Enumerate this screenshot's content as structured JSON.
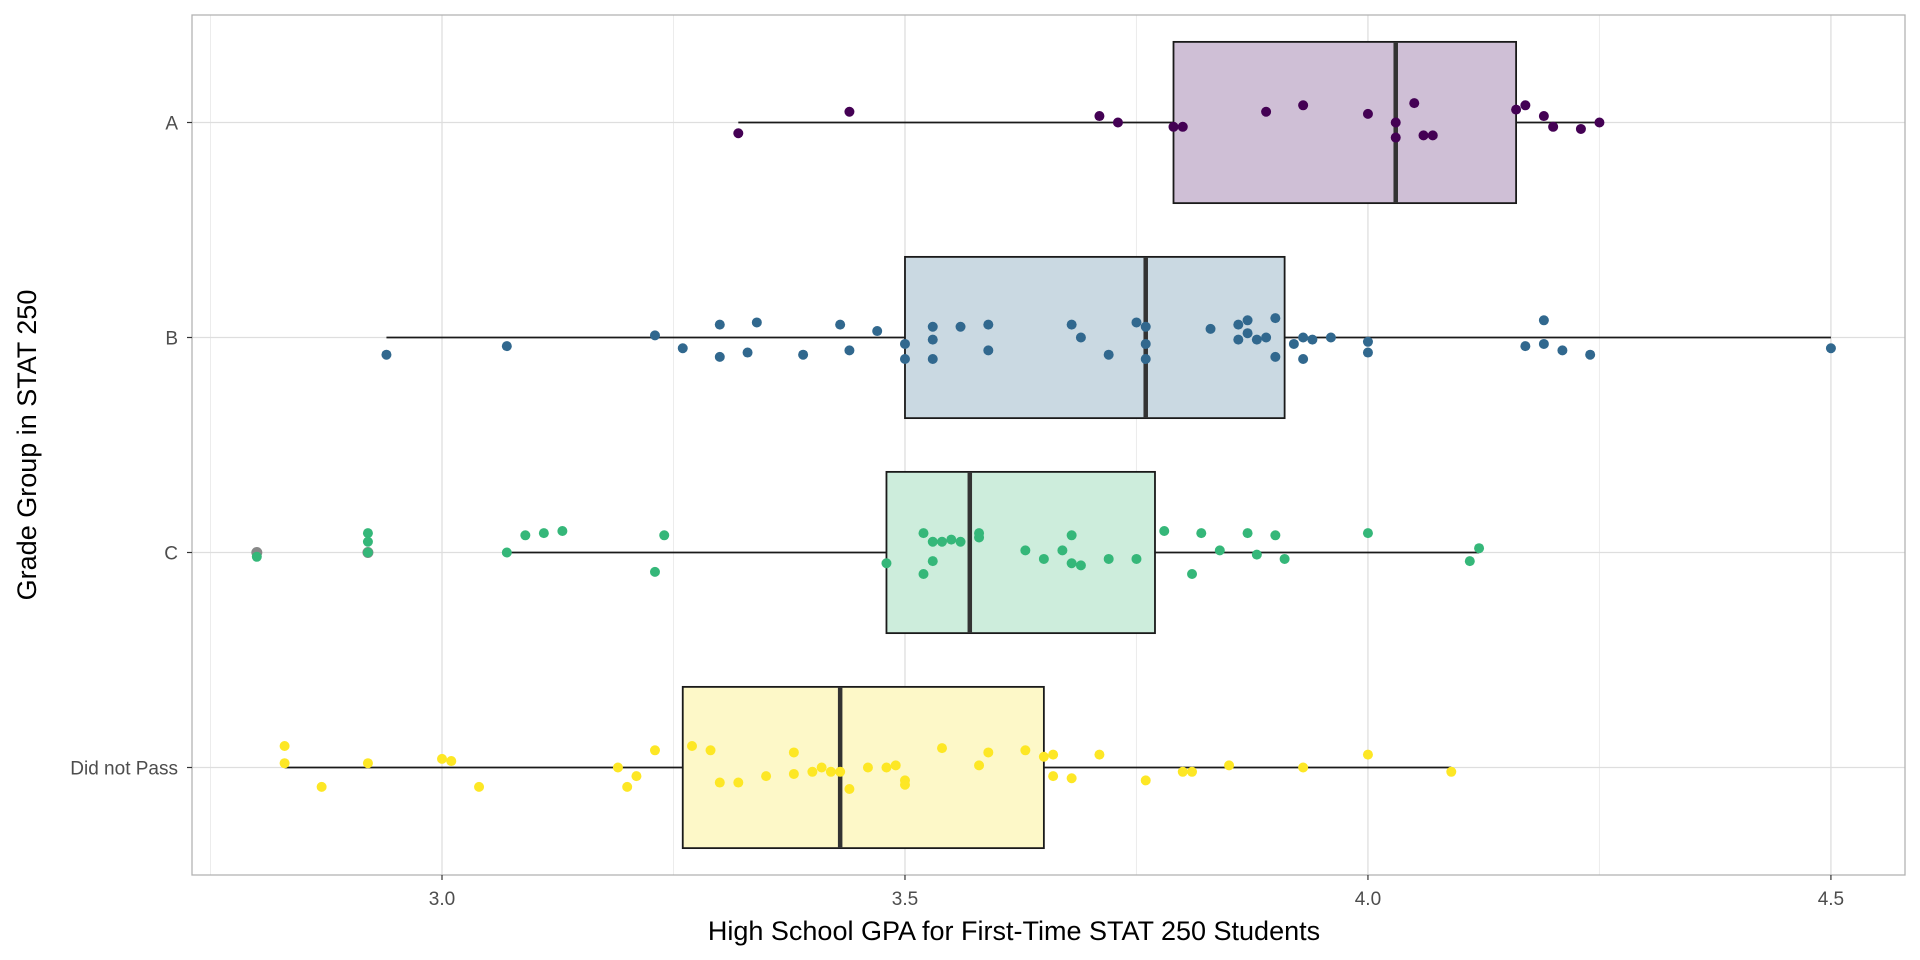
{
  "chart_data": {
    "type": "boxplot",
    "xlabel": "High School GPA for First-Time STAT 250 Students",
    "ylabel": "Grade Group in STAT 250",
    "xlim": [
      2.73,
      4.58
    ],
    "x_ticks": [
      3.0,
      3.5,
      4.0,
      4.5
    ],
    "x_tick_labels": [
      "3.0",
      "3.5",
      "4.0",
      "4.5"
    ],
    "grid": true,
    "legend": "none",
    "groups": [
      {
        "category": "A",
        "color": "#440154",
        "box_fill": "#cfbfd6",
        "whisker_low": 3.32,
        "q1": 3.79,
        "median": 4.03,
        "q3": 4.16,
        "whisker_high": 4.25,
        "outliers": [],
        "points": [
          {
            "x": 3.32,
            "y": -0.05
          },
          {
            "x": 3.44,
            "y": 0.05
          },
          {
            "x": 3.71,
            "y": 0.03
          },
          {
            "x": 3.73,
            "y": 0.0
          },
          {
            "x": 3.79,
            "y": -0.02
          },
          {
            "x": 3.8,
            "y": -0.02
          },
          {
            "x": 3.89,
            "y": 0.05
          },
          {
            "x": 3.93,
            "y": 0.08
          },
          {
            "x": 4.0,
            "y": 0.04
          },
          {
            "x": 4.03,
            "y": 0.0
          },
          {
            "x": 4.03,
            "y": -0.07
          },
          {
            "x": 4.05,
            "y": 0.09
          },
          {
            "x": 4.06,
            "y": -0.06
          },
          {
            "x": 4.07,
            "y": -0.06
          },
          {
            "x": 4.16,
            "y": 0.06
          },
          {
            "x": 4.17,
            "y": 0.08
          },
          {
            "x": 4.19,
            "y": 0.03
          },
          {
            "x": 4.2,
            "y": -0.02
          },
          {
            "x": 4.23,
            "y": -0.03
          },
          {
            "x": 4.25,
            "y": 0.0
          }
        ]
      },
      {
        "category": "B",
        "color": "#31688e",
        "box_fill": "#cad9e2",
        "whisker_low": 2.94,
        "q1": 3.5,
        "median": 3.76,
        "q3": 3.91,
        "whisker_high": 4.5,
        "outliers": [],
        "points": [
          {
            "x": 2.94,
            "y": -0.08
          },
          {
            "x": 3.07,
            "y": -0.04
          },
          {
            "x": 3.23,
            "y": 0.01
          },
          {
            "x": 3.26,
            "y": -0.05
          },
          {
            "x": 3.3,
            "y": 0.06
          },
          {
            "x": 3.3,
            "y": -0.09
          },
          {
            "x": 3.33,
            "y": -0.07
          },
          {
            "x": 3.34,
            "y": 0.07
          },
          {
            "x": 3.39,
            "y": -0.08
          },
          {
            "x": 3.43,
            "y": 0.06
          },
          {
            "x": 3.44,
            "y": -0.06
          },
          {
            "x": 3.47,
            "y": 0.03
          },
          {
            "x": 3.5,
            "y": -0.1
          },
          {
            "x": 3.5,
            "y": -0.03
          },
          {
            "x": 3.53,
            "y": 0.05
          },
          {
            "x": 3.53,
            "y": -0.01
          },
          {
            "x": 3.53,
            "y": -0.1
          },
          {
            "x": 3.56,
            "y": 0.05
          },
          {
            "x": 3.59,
            "y": 0.06
          },
          {
            "x": 3.59,
            "y": -0.06
          },
          {
            "x": 3.68,
            "y": 0.06
          },
          {
            "x": 3.69,
            "y": 0.0
          },
          {
            "x": 3.72,
            "y": -0.08
          },
          {
            "x": 3.75,
            "y": 0.07
          },
          {
            "x": 3.76,
            "y": 0.05
          },
          {
            "x": 3.76,
            "y": -0.03
          },
          {
            "x": 3.76,
            "y": -0.1
          },
          {
            "x": 3.83,
            "y": 0.04
          },
          {
            "x": 3.86,
            "y": 0.06
          },
          {
            "x": 3.86,
            "y": -0.01
          },
          {
            "x": 3.87,
            "y": 0.08
          },
          {
            "x": 3.87,
            "y": 0.02
          },
          {
            "x": 3.88,
            "y": -0.01
          },
          {
            "x": 3.89,
            "y": 0.0
          },
          {
            "x": 3.9,
            "y": 0.09
          },
          {
            "x": 3.9,
            "y": -0.09
          },
          {
            "x": 3.92,
            "y": -0.03
          },
          {
            "x": 3.93,
            "y": 0.0
          },
          {
            "x": 3.93,
            "y": -0.1
          },
          {
            "x": 3.94,
            "y": -0.01
          },
          {
            "x": 3.96,
            "y": 0.0
          },
          {
            "x": 4.0,
            "y": -0.02
          },
          {
            "x": 4.0,
            "y": -0.07
          },
          {
            "x": 4.17,
            "y": -0.04
          },
          {
            "x": 4.19,
            "y": 0.08
          },
          {
            "x": 4.19,
            "y": -0.03
          },
          {
            "x": 4.21,
            "y": -0.06
          },
          {
            "x": 4.24,
            "y": -0.08
          },
          {
            "x": 4.5,
            "y": -0.05
          }
        ]
      },
      {
        "category": "C",
        "color": "#35b779",
        "box_fill": "#cdeddc",
        "whisker_low": 3.07,
        "q1": 3.48,
        "median": 3.57,
        "q3": 3.77,
        "whisker_high": 4.12,
        "outliers": [
          2.8,
          2.92
        ],
        "points": [
          {
            "x": 2.8,
            "y": -0.02
          },
          {
            "x": 2.92,
            "y": 0.09
          },
          {
            "x": 2.92,
            "y": 0.05
          },
          {
            "x": 2.92,
            "y": 0.0
          },
          {
            "x": 3.07,
            "y": 0.0
          },
          {
            "x": 3.09,
            "y": 0.08
          },
          {
            "x": 3.11,
            "y": 0.09
          },
          {
            "x": 3.13,
            "y": 0.1
          },
          {
            "x": 3.23,
            "y": -0.09
          },
          {
            "x": 3.24,
            "y": 0.08
          },
          {
            "x": 3.48,
            "y": -0.05
          },
          {
            "x": 3.52,
            "y": 0.09
          },
          {
            "x": 3.52,
            "y": -0.1
          },
          {
            "x": 3.53,
            "y": 0.05
          },
          {
            "x": 3.53,
            "y": -0.04
          },
          {
            "x": 3.54,
            "y": 0.05
          },
          {
            "x": 3.55,
            "y": 0.06
          },
          {
            "x": 3.56,
            "y": 0.05
          },
          {
            "x": 3.58,
            "y": 0.09
          },
          {
            "x": 3.58,
            "y": 0.07
          },
          {
            "x": 3.63,
            "y": 0.01
          },
          {
            "x": 3.65,
            "y": -0.03
          },
          {
            "x": 3.67,
            "y": 0.01
          },
          {
            "x": 3.68,
            "y": 0.08
          },
          {
            "x": 3.68,
            "y": -0.05
          },
          {
            "x": 3.69,
            "y": -0.06
          },
          {
            "x": 3.72,
            "y": -0.03
          },
          {
            "x": 3.75,
            "y": -0.03
          },
          {
            "x": 3.78,
            "y": 0.1
          },
          {
            "x": 3.81,
            "y": -0.1
          },
          {
            "x": 3.82,
            "y": 0.09
          },
          {
            "x": 3.84,
            "y": 0.01
          },
          {
            "x": 3.87,
            "y": 0.09
          },
          {
            "x": 3.88,
            "y": -0.01
          },
          {
            "x": 3.9,
            "y": 0.08
          },
          {
            "x": 3.91,
            "y": -0.03
          },
          {
            "x": 4.0,
            "y": 0.09
          },
          {
            "x": 4.11,
            "y": -0.04
          },
          {
            "x": 4.12,
            "y": 0.02
          }
        ]
      },
      {
        "category": "Did not Pass",
        "color": "#fde725",
        "box_fill": "#fdf8c8",
        "whisker_low": 2.83,
        "q1": 3.26,
        "median": 3.43,
        "q3": 3.65,
        "whisker_high": 4.09,
        "outliers": [],
        "points": [
          {
            "x": 2.83,
            "y": 0.1
          },
          {
            "x": 2.83,
            "y": 0.02
          },
          {
            "x": 2.87,
            "y": -0.09
          },
          {
            "x": 2.92,
            "y": 0.02
          },
          {
            "x": 3.0,
            "y": 0.04
          },
          {
            "x": 3.01,
            "y": 0.03
          },
          {
            "x": 3.04,
            "y": -0.09
          },
          {
            "x": 3.19,
            "y": 0.0
          },
          {
            "x": 3.2,
            "y": -0.09
          },
          {
            "x": 3.21,
            "y": -0.04
          },
          {
            "x": 3.23,
            "y": 0.08
          },
          {
            "x": 3.27,
            "y": 0.1
          },
          {
            "x": 3.29,
            "y": 0.08
          },
          {
            "x": 3.3,
            "y": -0.07
          },
          {
            "x": 3.32,
            "y": -0.07
          },
          {
            "x": 3.35,
            "y": -0.04
          },
          {
            "x": 3.38,
            "y": -0.03
          },
          {
            "x": 3.38,
            "y": 0.07
          },
          {
            "x": 3.4,
            "y": -0.02
          },
          {
            "x": 3.41,
            "y": 0.0
          },
          {
            "x": 3.42,
            "y": -0.02
          },
          {
            "x": 3.43,
            "y": -0.02
          },
          {
            "x": 3.44,
            "y": -0.1
          },
          {
            "x": 3.46,
            "y": 0.0
          },
          {
            "x": 3.48,
            "y": 0.0
          },
          {
            "x": 3.49,
            "y": 0.01
          },
          {
            "x": 3.5,
            "y": -0.06
          },
          {
            "x": 3.5,
            "y": -0.08
          },
          {
            "x": 3.54,
            "y": 0.09
          },
          {
            "x": 3.58,
            "y": 0.01
          },
          {
            "x": 3.59,
            "y": 0.07
          },
          {
            "x": 3.63,
            "y": 0.08
          },
          {
            "x": 3.65,
            "y": 0.05
          },
          {
            "x": 3.66,
            "y": -0.04
          },
          {
            "x": 3.66,
            "y": 0.06
          },
          {
            "x": 3.68,
            "y": -0.05
          },
          {
            "x": 3.71,
            "y": 0.06
          },
          {
            "x": 3.76,
            "y": -0.06
          },
          {
            "x": 3.8,
            "y": -0.02
          },
          {
            "x": 3.81,
            "y": -0.02
          },
          {
            "x": 3.85,
            "y": 0.01
          },
          {
            "x": 3.93,
            "y": 0.0
          },
          {
            "x": 4.0,
            "y": 0.06
          },
          {
            "x": 4.09,
            "y": -0.02
          }
        ]
      }
    ]
  }
}
